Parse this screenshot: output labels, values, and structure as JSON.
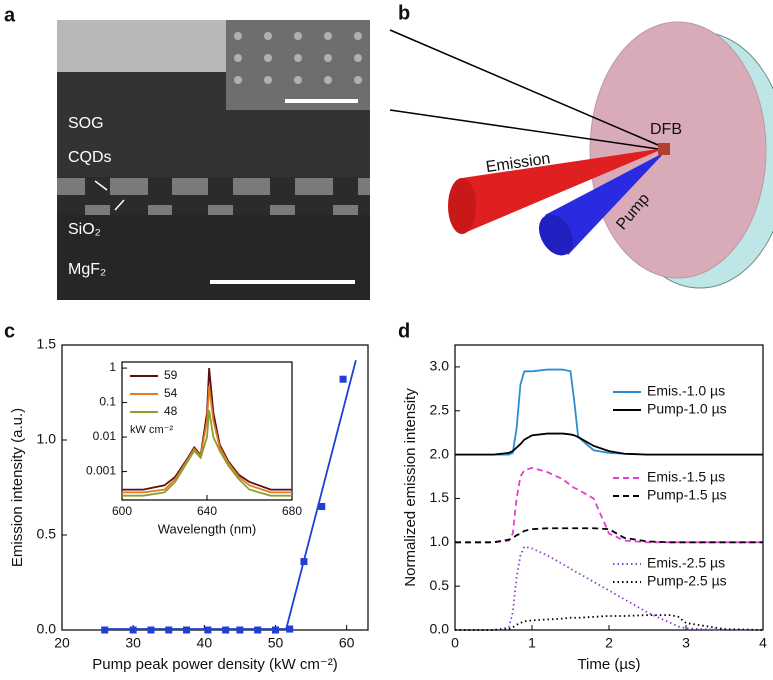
{
  "panels": {
    "a": {
      "letter": "a",
      "labels": {
        "sog": "SOG",
        "cqds": "CQDs",
        "sio2": "SiO₂",
        "mgf2": "MgF₂"
      }
    },
    "b": {
      "letter": "b",
      "labels": {
        "dfb": "DFB",
        "emission": "Emission",
        "pump": "Pump"
      }
    },
    "c": {
      "letter": "c"
    },
    "d": {
      "letter": "d"
    }
  },
  "chart_data": [
    {
      "type": "line",
      "xlabel": "Pump peak power density (kW cm⁻²)",
      "ylabel": "Emission intensity (a.u.)",
      "xlim": [
        20,
        63
      ],
      "xticks": [
        20,
        30,
        40,
        50,
        60
      ],
      "ylim": [
        0,
        1.5
      ],
      "yticks": [
        {
          "value": 0,
          "label": "0.0"
        },
        {
          "value": 0.5,
          "label": "0.5"
        },
        {
          "value": 1,
          "label": "1.0"
        },
        {
          "value": 1.5,
          "label": "1.5"
        }
      ],
      "series": [
        {
          "color": "#1f3fd8",
          "marker": "square",
          "x": [
            26,
            30,
            32.5,
            35,
            37.5,
            40.5,
            43,
            45,
            47.5,
            50,
            52,
            54,
            56.5,
            59.5
          ],
          "values": [
            0,
            0,
            0,
            0,
            0,
            0,
            0,
            0,
            0,
            0,
            0.005,
            0.36,
            0.65,
            1.32
          ]
        },
        {
          "color": "#1f3fd8",
          "dash": "solid",
          "x": [
            26,
            51.5,
            61.3
          ],
          "values": [
            0.005,
            0.005,
            1.42
          ]
        }
      ]
    },
    {
      "type": "line",
      "xlabel": "Wavelength (nm)",
      "log_y": true,
      "legend": "upper left",
      "legend_note": "kW cm⁻²",
      "xlim": [
        600,
        680
      ],
      "xticks": [
        600,
        640,
        680
      ],
      "ylim": [
        0.00015,
        1.5
      ],
      "yticks": [
        1,
        0.1,
        0.01,
        0.001
      ],
      "x": [
        600,
        610,
        620,
        625,
        630,
        634,
        637,
        640,
        641,
        643,
        646,
        650,
        655,
        660,
        670,
        680
      ],
      "series": [
        {
          "name": "59",
          "color": "#5a0f12",
          "dash": "solid",
          "values": [
            0.0003,
            0.0003,
            0.0004,
            0.0007,
            0.002,
            0.005,
            0.003,
            0.05,
            1,
            0.05,
            0.006,
            0.002,
            0.0008,
            0.0005,
            0.0003,
            0.0003
          ]
        },
        {
          "name": "54",
          "color": "#e07b20",
          "dash": "solid",
          "values": [
            0.00025,
            0.00025,
            0.0003,
            0.0006,
            0.0018,
            0.0045,
            0.0028,
            0.03,
            0.3,
            0.03,
            0.005,
            0.0018,
            0.0007,
            0.0004,
            0.00025,
            0.00025
          ]
        },
        {
          "name": "48",
          "color": "#8aa030",
          "dash": "solid",
          "values": [
            0.0002,
            0.0002,
            0.00025,
            0.0005,
            0.0016,
            0.004,
            0.0025,
            0.01,
            0.06,
            0.01,
            0.004,
            0.0015,
            0.0006,
            0.0003,
            0.0002,
            0.0002
          ]
        }
      ]
    },
    {
      "type": "line",
      "xlabel": "Time (µs)",
      "ylabel": "Normalized emission intensity",
      "legend": "upper right",
      "xlim": [
        0,
        4
      ],
      "xticks": [
        0,
        1,
        2,
        3,
        4
      ],
      "ylim": [
        0,
        3.25
      ],
      "yticks": [
        {
          "value": 0,
          "label": "0.0"
        },
        {
          "value": 0.5,
          "label": "0.5"
        },
        {
          "value": 1,
          "label": "1.0"
        },
        {
          "value": 1.5,
          "label": "1.5"
        },
        {
          "value": 2,
          "label": "2.0"
        },
        {
          "value": 2.5,
          "label": "2.5"
        },
        {
          "value": 3,
          "label": "3.0"
        }
      ],
      "x": [
        0,
        0.5,
        0.7,
        0.75,
        0.8,
        0.85,
        0.9,
        1,
        1.2,
        1.4,
        1.5,
        1.55,
        1.6,
        1.8,
        2,
        2.2,
        2.5,
        2.8,
        2.9,
        3,
        3.5,
        4
      ],
      "series": [
        {
          "name": "Emis.-1.0 µs",
          "color": "#2a8fd0",
          "dash": "solid",
          "values": [
            2,
            2,
            2,
            2.02,
            2.3,
            2.8,
            2.95,
            2.95,
            2.97,
            2.97,
            2.95,
            2.6,
            2.2,
            2.05,
            2.02,
            2.01,
            2,
            2,
            2,
            2,
            2,
            2
          ]
        },
        {
          "name": "Pump-1.0 µs",
          "color": "#000000",
          "dash": "solid",
          "values": [
            2,
            2,
            2.02,
            2.04,
            2.08,
            2.12,
            2.17,
            2.22,
            2.24,
            2.24,
            2.23,
            2.22,
            2.2,
            2.1,
            2.04,
            2.01,
            2,
            2,
            2,
            2,
            2,
            2
          ]
        },
        {
          "name": "Emis.-1.5 µs",
          "color": "#e040d0",
          "dash": "dashed",
          "values": [
            1,
            1,
            1.02,
            1.1,
            1.5,
            1.75,
            1.82,
            1.85,
            1.8,
            1.72,
            1.65,
            1.62,
            1.6,
            1.5,
            1.1,
            1.02,
            1,
            1,
            1,
            1,
            1,
            1
          ]
        },
        {
          "name": "Pump-1.5 µs",
          "color": "#000000",
          "dash": "dashed",
          "values": [
            1,
            1,
            1.03,
            1.05,
            1.08,
            1.1,
            1.13,
            1.15,
            1.16,
            1.16,
            1.16,
            1.16,
            1.16,
            1.16,
            1.15,
            1.05,
            1.01,
            1,
            1,
            1,
            1,
            1
          ]
        },
        {
          "name": "Emis.-2.5 µs",
          "color": "#8a3fd0",
          "dash": "dotted",
          "values": [
            0,
            0,
            0.03,
            0.2,
            0.6,
            0.85,
            0.95,
            0.93,
            0.85,
            0.75,
            0.7,
            0.67,
            0.65,
            0.55,
            0.45,
            0.35,
            0.2,
            0.08,
            0.04,
            0.02,
            0,
            0
          ]
        },
        {
          "name": "Pump-2.5 µs",
          "color": "#000000",
          "dash": "dotted",
          "values": [
            0,
            0,
            0.01,
            0.03,
            0.06,
            0.08,
            0.1,
            0.11,
            0.12,
            0.13,
            0.14,
            0.14,
            0.14,
            0.15,
            0.16,
            0.16,
            0.17,
            0.17,
            0.15,
            0.08,
            0.01,
            0
          ]
        }
      ]
    }
  ]
}
